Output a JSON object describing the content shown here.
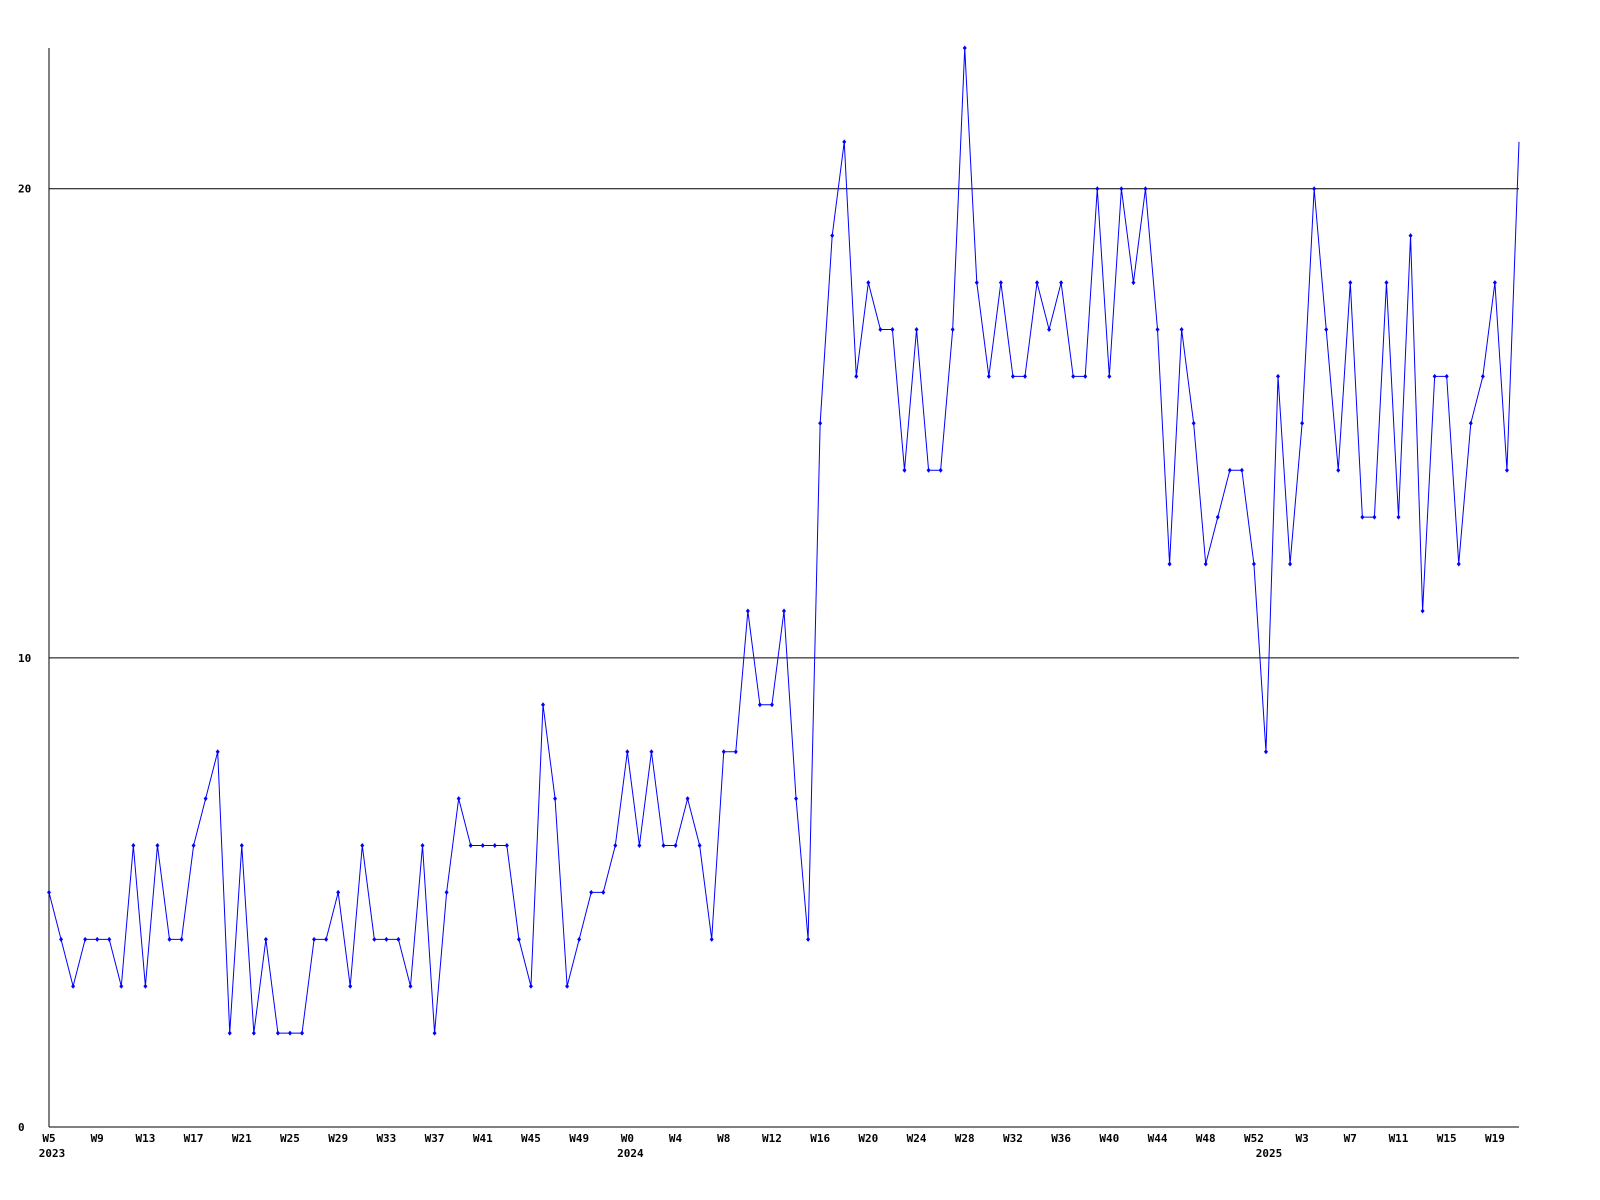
{
  "chart_data": {
    "type": "line",
    "categories": [
      "W5",
      null,
      null,
      null,
      "W9",
      null,
      null,
      null,
      "W13",
      null,
      null,
      null,
      "W17",
      null,
      null,
      null,
      "W21",
      null,
      null,
      null,
      "W25",
      null,
      null,
      null,
      "W29",
      null,
      null,
      null,
      "W33",
      null,
      null,
      null,
      "W37",
      null,
      null,
      null,
      "W41",
      null,
      null,
      null,
      "W45",
      null,
      null,
      null,
      "W49",
      null,
      null,
      null,
      "W0",
      null,
      null,
      null,
      "W4",
      null,
      null,
      null,
      "W8",
      null,
      null,
      null,
      "W12",
      null,
      null,
      null,
      "W16",
      null,
      null,
      null,
      "W20",
      null,
      null,
      null,
      "W24",
      null,
      null,
      null,
      "W28",
      null,
      null,
      null,
      "W32",
      null,
      null,
      null,
      "W36",
      null,
      null,
      null,
      "W40",
      null,
      null,
      null,
      "W44",
      null,
      null,
      null,
      "W48",
      null,
      null,
      null,
      "W52",
      null,
      null,
      null,
      "W3",
      null,
      null,
      null,
      "W7",
      null,
      null,
      null,
      "W11",
      null,
      null,
      null,
      "W15",
      null,
      null,
      null,
      "W19",
      null,
      null
    ],
    "year_labels": [
      "2023",
      null,
      null,
      null,
      null,
      null,
      null,
      null,
      null,
      null,
      null,
      null,
      null,
      null,
      null,
      null,
      null,
      null,
      null,
      null,
      null,
      null,
      null,
      null,
      null,
      null,
      null,
      null,
      null,
      null,
      null,
      null,
      null,
      null,
      null,
      null,
      null,
      null,
      null,
      null,
      null,
      null,
      null,
      null,
      null,
      null,
      null,
      null,
      "2024",
      null,
      null,
      null,
      null,
      null,
      null,
      null,
      null,
      null,
      null,
      null,
      null,
      null,
      null,
      null,
      null,
      null,
      null,
      null,
      null,
      null,
      null,
      null,
      null,
      null,
      null,
      null,
      null,
      null,
      null,
      null,
      null,
      null,
      null,
      null,
      null,
      null,
      null,
      null,
      null,
      null,
      null,
      null,
      null,
      null,
      null,
      null,
      null,
      null,
      null,
      null,
      null,
      "2025",
      null,
      null,
      null,
      null,
      null,
      null,
      null,
      null,
      null,
      null,
      null,
      null,
      null,
      null,
      null,
      null,
      null,
      null,
      null,
      null
    ],
    "series": [
      {
        "color": "#0000ff",
        "values": [
          5,
          4,
          3,
          4,
          4,
          4,
          3,
          6,
          3,
          6,
          4,
          4,
          6,
          7,
          8,
          2,
          6,
          2,
          4,
          2,
          2,
          2,
          4,
          4,
          5,
          3,
          6,
          4,
          4,
          4,
          3,
          6,
          2,
          5,
          7,
          6,
          6,
          6,
          6,
          4,
          3,
          9,
          7,
          3,
          4,
          5,
          5,
          6,
          8,
          6,
          8,
          6,
          6,
          7,
          6,
          4,
          8,
          8,
          11,
          9,
          9,
          11,
          7,
          4,
          15,
          19,
          21,
          16,
          18,
          17,
          17,
          14,
          17,
          14,
          14,
          17,
          23,
          18,
          16,
          18,
          16,
          16,
          18,
          17,
          18,
          16,
          16,
          20,
          16,
          20,
          18,
          20,
          17,
          12,
          17,
          15,
          12,
          13,
          14,
          14,
          12,
          8,
          16,
          12,
          15,
          20,
          17,
          14,
          18,
          13,
          13,
          18,
          13,
          19,
          11,
          16,
          16,
          12,
          15,
          16,
          18,
          14,
          21
        ]
      }
    ],
    "ylim": [
      0,
      23
    ],
    "yticks": [
      0,
      10,
      20
    ],
    "grid": true
  }
}
